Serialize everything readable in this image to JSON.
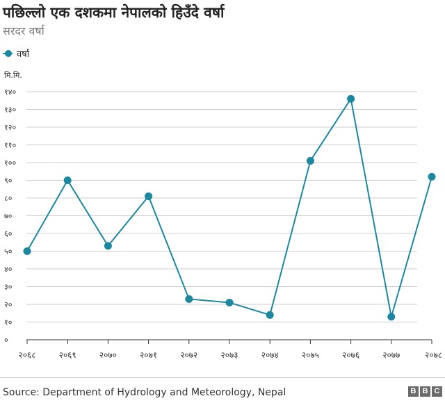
{
  "header": {
    "title": "पछिल्लो एक दशकमा नेपालको हिउँदे वर्षा",
    "subtitle": "सरदर वर्षा"
  },
  "footer": {
    "source": "Source: Department of Hydrology and Meteorology, Nepal",
    "logo": [
      "B",
      "B",
      "C"
    ]
  },
  "colors": {
    "series": "#1b88a0",
    "grid": "#cccccc",
    "axis": "#333333"
  },
  "chart_data": {
    "type": "line",
    "ylabel": "मि.मि.",
    "ylim": [
      0,
      140
    ],
    "yticks": [
      0,
      10,
      20,
      30,
      40,
      50,
      60,
      70,
      80,
      90,
      100,
      110,
      120,
      130,
      140
    ],
    "ytick_labels": [
      "०",
      "१०",
      "२०",
      "३०",
      "४०",
      "५०",
      "६०",
      "७०",
      "८०",
      "९०",
      "१००",
      "११०",
      "१२०",
      "१३०",
      "१४०"
    ],
    "categories": [
      "२०६८",
      "२०६९",
      "२०७०",
      "२०७१",
      "२०७२",
      "२०७३",
      "२०७४",
      "२०७५",
      "२०७६",
      "२०७७",
      "२०७८"
    ],
    "series": [
      {
        "name": "वर्षा",
        "values": [
          50,
          90,
          53,
          81,
          23,
          21,
          14,
          101,
          136,
          13,
          92
        ]
      }
    ],
    "grid": true,
    "legend": "top-left"
  }
}
